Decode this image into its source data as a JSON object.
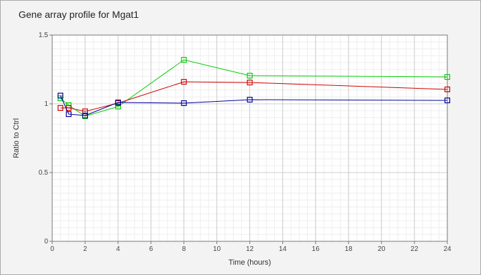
{
  "chart_data": {
    "type": "line",
    "title": "Gene array profile for Mgat1",
    "xlabel": "Time (hours)",
    "ylabel": "Ratio to Ctrl",
    "xlim": [
      0,
      24
    ],
    "ylim": [
      0,
      1.5
    ],
    "x_ticks": [
      0,
      2,
      4,
      6,
      8,
      10,
      12,
      14,
      16,
      18,
      20,
      22,
      24
    ],
    "y_ticks": [
      0,
      0.5,
      1,
      1.5
    ],
    "y_tick_labels": [
      "0",
      "0.5",
      "1",
      "1.5"
    ],
    "grid": true,
    "legend": "none",
    "series": [
      {
        "color": "#00cc00",
        "x": [
          0.5,
          1,
          2,
          4,
          8,
          12,
          24
        ],
        "values": [
          1.04,
          0.99,
          0.91,
          0.98,
          1.32,
          1.205,
          1.195
        ]
      },
      {
        "color": "#cc0000",
        "x": [
          0.5,
          1,
          2,
          4,
          8,
          12,
          24
        ],
        "values": [
          0.97,
          0.97,
          0.945,
          1.005,
          1.16,
          1.155,
          1.105
        ]
      },
      {
        "color": "#000099",
        "x": [
          0.5,
          1,
          2,
          4,
          8,
          12,
          24
        ],
        "values": [
          1.06,
          0.925,
          0.915,
          1.01,
          1.005,
          1.03,
          1.025
        ]
      }
    ]
  }
}
